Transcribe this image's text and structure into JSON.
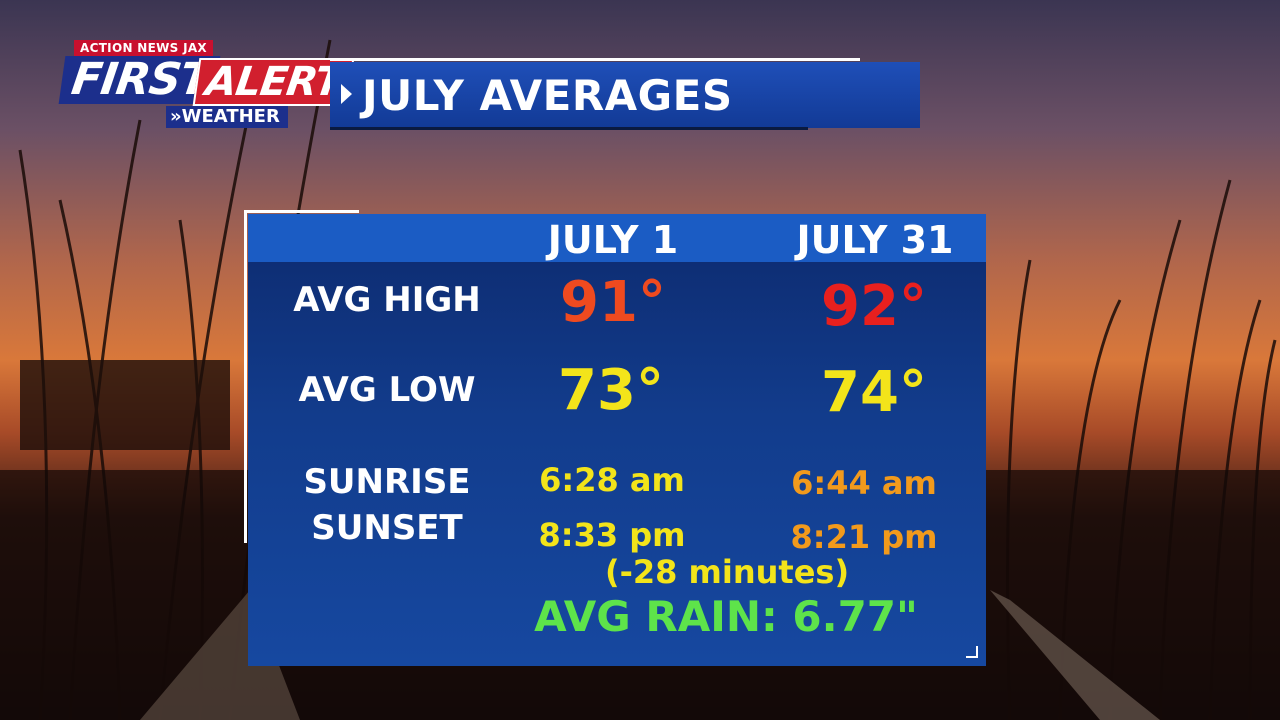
{
  "branding": {
    "station": "ACTION NEWS JAX",
    "first": "FIRST",
    "alert": "ALERT",
    "weather": "WEATHER"
  },
  "title": "JULY AVERAGES",
  "columns": [
    "JULY 1",
    "JULY 31"
  ],
  "rows": {
    "avg_high": {
      "label": "AVG HIGH",
      "july1": "91°",
      "july31": "92°"
    },
    "avg_low": {
      "label": "AVG LOW",
      "july1": "73°",
      "july31": "74°"
    },
    "sun": {
      "label_sunrise": "SUNRISE",
      "label_sunset": "SUNSET",
      "sunrise_july1": "6:28 am",
      "sunrise_july31": "6:44 am",
      "sunset_july1": "8:33 pm",
      "sunset_july31": "8:21 pm",
      "daylight_change": "(-28 minutes)"
    }
  },
  "avg_rain": "AVG RAIN: 6.77\"",
  "colors": {
    "panel": "#123c8c",
    "header_bar": "#1b5cc4",
    "high_july1": "#ef4a1f",
    "high_july31": "#e8201e",
    "yellow": "#f3e41a",
    "orange": "#f29a1c",
    "green": "#5ee34a"
  }
}
